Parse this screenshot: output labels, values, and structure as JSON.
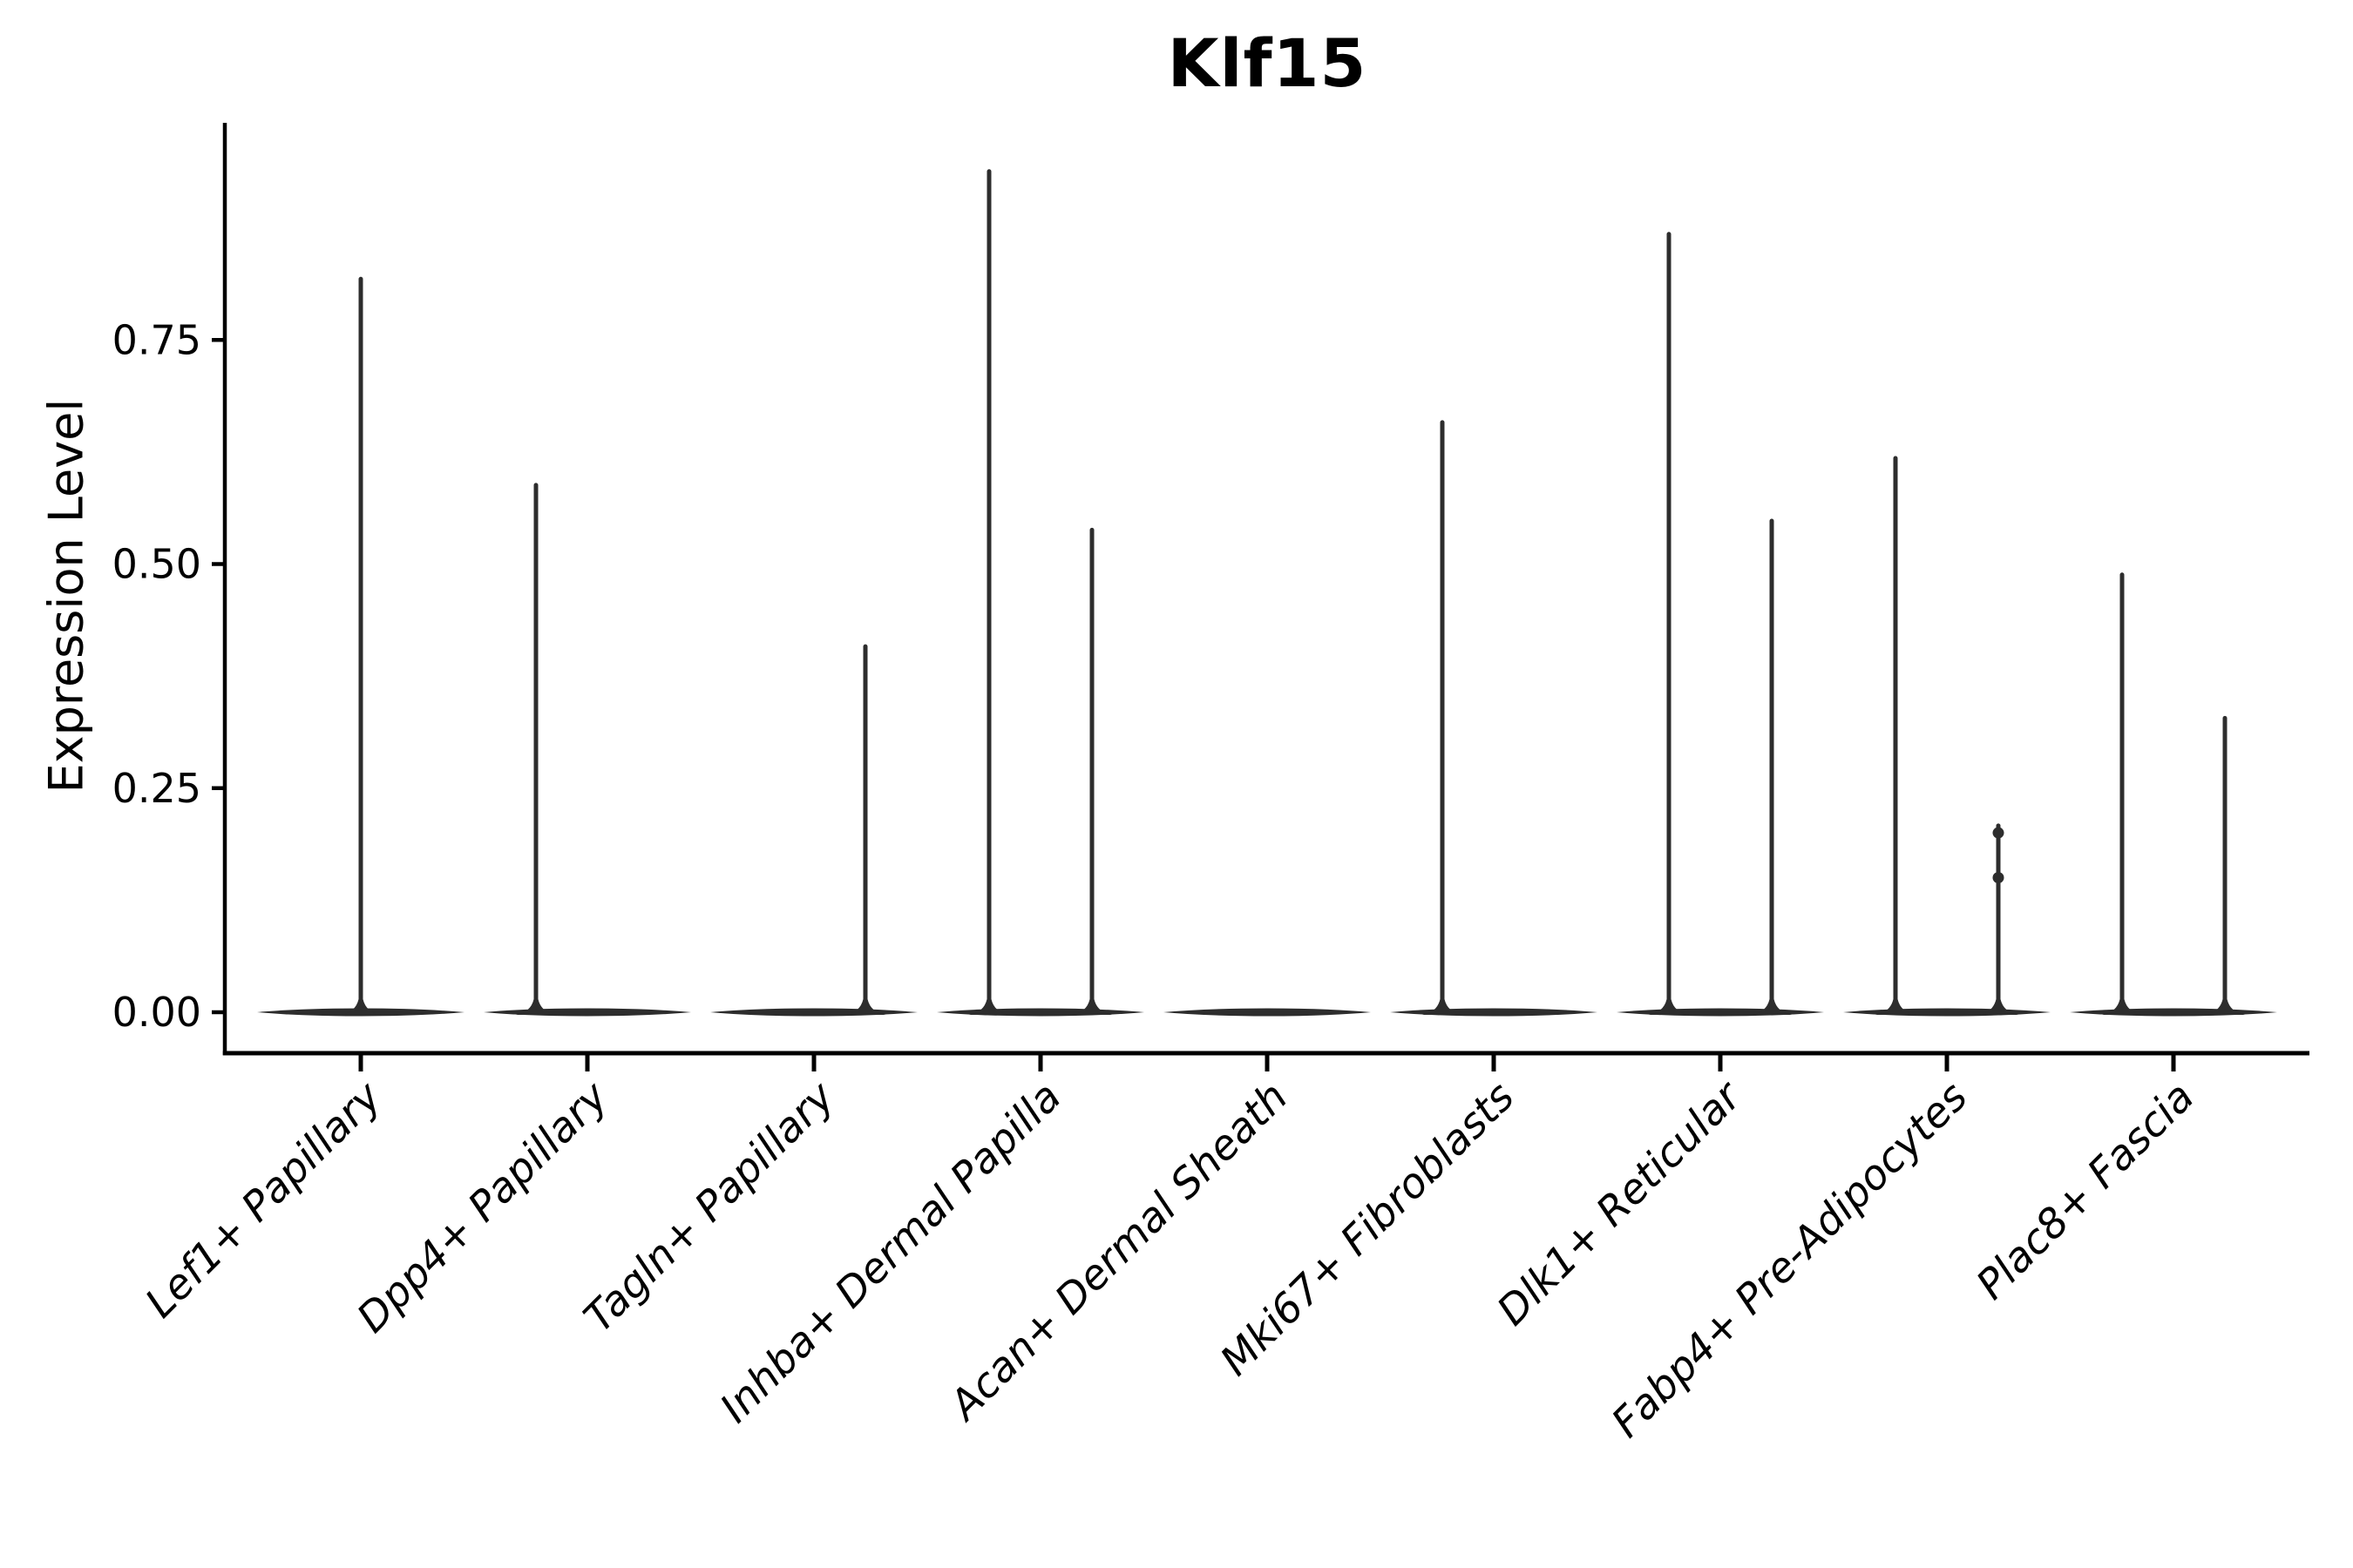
{
  "figure": {
    "title": "Klf15",
    "background_color": "#ffffff"
  },
  "colors": {
    "ink": "#000000",
    "violin": "#2d2d2d"
  },
  "chart_data": {
    "type": "violin",
    "title": "Klf15",
    "xlabel": "",
    "ylabel": "Expression Level",
    "ylim": [
      0,
      1.0
    ],
    "grid": false,
    "x_tick_rotation_deg": 45,
    "yticks": [
      {
        "label": "0.00",
        "value": 0.0
      },
      {
        "label": "0.25",
        "value": 0.25
      },
      {
        "label": "0.50",
        "value": 0.5
      },
      {
        "label": "0.75",
        "value": 0.75
      }
    ],
    "categories": [
      "Lef1+ Papillary",
      "Dpp4+ Papillary",
      "Tagln+ Papillary",
      "Inhba+ Dermal Papilla",
      "Acan+ Dermal Sheath",
      "Mki67+ Fibroblasts",
      "Dlk1+ Reticular",
      "Fabp4+ Pre-Adipocytes",
      "Plac8+ Fascia"
    ],
    "series": [
      {
        "category": "Lef1+ Papillary",
        "baseline_value": 0.0,
        "spikes": [
          {
            "position": "center",
            "max_expression": 0.82
          }
        ]
      },
      {
        "category": "Dpp4+ Papillary",
        "baseline_value": 0.0,
        "spikes": [
          {
            "position": "left",
            "max_expression": 0.59
          }
        ]
      },
      {
        "category": "Tagln+ Papillary",
        "baseline_value": 0.0,
        "spikes": [
          {
            "position": "right",
            "max_expression": 0.41
          }
        ]
      },
      {
        "category": "Inhba+ Dermal Papilla",
        "baseline_value": 0.0,
        "spikes": [
          {
            "position": "left",
            "max_expression": 0.94
          },
          {
            "position": "right",
            "max_expression": 0.54
          }
        ]
      },
      {
        "category": "Acan+ Dermal Sheath",
        "baseline_value": 0.0,
        "spikes": []
      },
      {
        "category": "Mki67+ Fibroblasts",
        "baseline_value": 0.0,
        "spikes": [
          {
            "position": "left",
            "max_expression": 0.66
          }
        ]
      },
      {
        "category": "Dlk1+ Reticular",
        "baseline_value": 0.0,
        "spikes": [
          {
            "position": "left",
            "max_expression": 0.87
          },
          {
            "position": "right",
            "max_expression": 0.55
          }
        ]
      },
      {
        "category": "Fabp4+ Pre-Adipocytes",
        "baseline_value": 0.0,
        "spikes": [
          {
            "position": "left",
            "max_expression": 0.62
          },
          {
            "position": "right",
            "max_expression": 0.21,
            "bulges": [
              0.205,
              0.155
            ]
          }
        ]
      },
      {
        "category": "Plac8+ Fascia",
        "baseline_value": 0.0,
        "spikes": [
          {
            "position": "left",
            "max_expression": 0.49
          },
          {
            "position": "right",
            "max_expression": 0.33
          }
        ]
      }
    ]
  }
}
